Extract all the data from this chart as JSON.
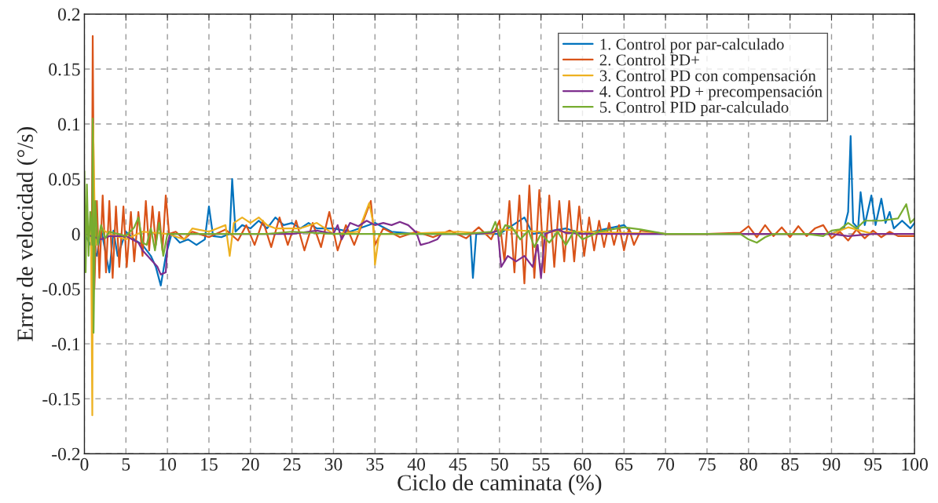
{
  "chart_data": {
    "type": "line",
    "xlabel": "Ciclo de caminata (%)",
    "ylabel": "Error de velocidad (°/s)",
    "xlim": [
      0,
      100
    ],
    "xticks": [
      0,
      5,
      10,
      15,
      20,
      25,
      30,
      35,
      40,
      45,
      50,
      55,
      60,
      65,
      70,
      75,
      80,
      85,
      90,
      95,
      100
    ],
    "ylim": [
      -0.2,
      0.2
    ],
    "yticks": [
      -0.2,
      -0.15,
      -0.1,
      -0.05,
      0,
      0.05,
      0.1,
      0.15,
      0.2
    ],
    "grid": true,
    "legend": "top right",
    "line_style": "solid",
    "marker": "none",
    "series": [
      {
        "name": "1. Control por par-calculado",
        "color": "#0072bd",
        "x": [
          0,
          1,
          1.5,
          2,
          2.5,
          3,
          3.5,
          4,
          5,
          6,
          7,
          8,
          8.6,
          9.2,
          9.8,
          10.5,
          11.5,
          12.5,
          13.5,
          14.5,
          15,
          15.5,
          16.5,
          17.5,
          17.8,
          18.2,
          19,
          20,
          21,
          22,
          23,
          24,
          25,
          26,
          27,
          28,
          30,
          32,
          35,
          37,
          40,
          44,
          46.5,
          46.8,
          47.2,
          50,
          53,
          54,
          58,
          60,
          65,
          66,
          70,
          75,
          80,
          85,
          90,
          91.5,
          92,
          92.3,
          92.6,
          93.2,
          93.5,
          94,
          94.8,
          95.3,
          96,
          96.5,
          97,
          97.5,
          98.5,
          99.5,
          100
        ],
        "values": [
          0,
          null,
          -0.02,
          0.005,
          -0.015,
          -0.035,
          0.003,
          -0.02,
          0.002,
          -0.005,
          -0.01,
          -0.02,
          -0.03,
          -0.047,
          -0.02,
          0,
          -0.008,
          -0.005,
          -0.01,
          -0.005,
          0.025,
          -0.002,
          -0.003,
          0,
          0.05,
          0.002,
          0.008,
          0.005,
          0.012,
          0.005,
          0.015,
          0.008,
          0.01,
          0.005,
          0.01,
          0.005,
          0.005,
          0.002,
          0.01,
          0.002,
          0,
          0,
          0,
          -0.04,
          0,
          0,
          0.015,
          0,
          0.005,
          0,
          0.008,
          0,
          0,
          0,
          0,
          0,
          0,
          0.005,
          0.02,
          0.089,
          0.01,
          0.005,
          0.038,
          0.008,
          0.035,
          0.008,
          0.032,
          0.01,
          0.02,
          0.005,
          0.012,
          0.005,
          0.01
        ]
      },
      {
        "name": "2. Control PD+",
        "color": "#d95319",
        "x": [
          0,
          0.5,
          0.9,
          1.0,
          1.2,
          1.5,
          1.8,
          2.2,
          2.6,
          3.0,
          3.4,
          3.8,
          4.2,
          4.7,
          5.1,
          5.6,
          6.0,
          6.5,
          7.0,
          7.4,
          7.8,
          8.2,
          8.6,
          9.0,
          9.4,
          9.8,
          10.2,
          11,
          12,
          13,
          15,
          17,
          18.5,
          19.5,
          20.5,
          21.5,
          22.5,
          23.5,
          24.5,
          25.5,
          26.5,
          27.5,
          28.5,
          29.5,
          30.5,
          31.5,
          32.5,
          33.5,
          34.5,
          35,
          36,
          38,
          40,
          42,
          44,
          46,
          47.5,
          49,
          50,
          50.6,
          51.2,
          51.8,
          52.4,
          53,
          53.6,
          54.2,
          54.8,
          55.4,
          56,
          56.6,
          57.2,
          57.8,
          58.4,
          59,
          59.6,
          60.2,
          60.8,
          61.4,
          62,
          62.6,
          63.2,
          63.8,
          64.4,
          65,
          65.6,
          66.2,
          67,
          70,
          75,
          79,
          80,
          81,
          82,
          83,
          84,
          85,
          86,
          87,
          88,
          89,
          90,
          91,
          92,
          93,
          94,
          95,
          96,
          97,
          98,
          100
        ],
        "values": [
          0,
          0.005,
          0,
          0.18,
          -0.05,
          0.03,
          -0.04,
          0.035,
          -0.035,
          0.03,
          -0.04,
          0.025,
          -0.03,
          0.025,
          -0.03,
          0.02,
          -0.025,
          0.02,
          -0.02,
          0.03,
          -0.015,
          0.025,
          -0.01,
          0.02,
          -0.015,
          0.035,
          0,
          0.002,
          -0.005,
          0.002,
          -0.003,
          0.004,
          -0.006,
          0.008,
          -0.01,
          0.012,
          -0.012,
          0.015,
          -0.01,
          0.012,
          -0.015,
          0.01,
          -0.012,
          0.02,
          -0.015,
          0.008,
          -0.01,
          0.01,
          0.03,
          -0.01,
          0.005,
          -0.003,
          0.002,
          -0.003,
          0.003,
          -0.004,
          0.006,
          -0.005,
          0.012,
          -0.025,
          0.03,
          -0.035,
          0.035,
          -0.045,
          0.044,
          -0.04,
          0.04,
          -0.035,
          0.035,
          -0.03,
          0.03,
          -0.025,
          0.03,
          -0.025,
          0.025,
          -0.02,
          0.015,
          -0.015,
          0.012,
          -0.012,
          0.01,
          -0.01,
          0.008,
          -0.015,
          0.005,
          -0.01,
          0.003,
          0,
          0,
          0.001,
          0.007,
          -0.003,
          0.008,
          -0.002,
          0.006,
          -0.003,
          0.007,
          -0.002,
          0.005,
          0.008,
          -0.004,
          0.002,
          -0.006,
          0.004,
          -0.004,
          0.003,
          -0.003,
          0.002,
          -0.002,
          -0.002
        ]
      },
      {
        "name": "3. Control PD con compensación",
        "color": "#edb120",
        "x": [
          0,
          0.8,
          0.95,
          1.05,
          1.3,
          2,
          3,
          5,
          7,
          10,
          12,
          13,
          15,
          17,
          17.5,
          18,
          19,
          20,
          21,
          22,
          23,
          26,
          28,
          29,
          30,
          33,
          34.3,
          34.8,
          35,
          35.5,
          38,
          45,
          49,
          50,
          55,
          60,
          70,
          80,
          90,
          92,
          95,
          100
        ],
        "values": [
          0,
          0.005,
          -0.165,
          0.1,
          -0.01,
          0.005,
          0,
          -0.005,
          0.002,
          0,
          -0.005,
          0.005,
          0.002,
          0.008,
          -0.02,
          0.01,
          0.015,
          0.01,
          0.015,
          0.008,
          0.005,
          0.005,
          0.01,
          0.005,
          0,
          0.002,
          0.028,
          0.01,
          -0.028,
          0,
          0,
          0.002,
          0,
          0.004,
          0.002,
          0.002,
          0,
          0,
          0,
          0.006,
          0,
          0
        ]
      },
      {
        "name": "4. Control PD + precompensación",
        "color": "#7e2f8e",
        "x": [
          0,
          2,
          3,
          5,
          6.5,
          7,
          7.6,
          8.2,
          8.8,
          9.2,
          9.8,
          10,
          10.3,
          15,
          20,
          25,
          28,
          30,
          30.5,
          31,
          32,
          33,
          34,
          35,
          36,
          37,
          38,
          39,
          40,
          40.5,
          41.5,
          42.5,
          43,
          46,
          49,
          49.8,
          50.2,
          51,
          52,
          53,
          54,
          54.6,
          55,
          55.5,
          57,
          58,
          60,
          70,
          80,
          90,
          92,
          95,
          100
        ],
        "values": [
          0,
          -0.005,
          -0.002,
          -0.002,
          -0.008,
          -0.015,
          -0.02,
          -0.025,
          -0.03,
          -0.037,
          -0.035,
          -0.01,
          0,
          0,
          0,
          0,
          0.003,
          0,
          0.008,
          -0.005,
          0.01,
          0.007,
          0.012,
          0.008,
          0.01,
          0.008,
          0.011,
          0.008,
          0.001,
          -0.01,
          -0.008,
          -0.005,
          0,
          0,
          0.001,
          0.003,
          -0.03,
          -0.02,
          -0.025,
          -0.02,
          -0.03,
          -0.01,
          -0.04,
          0,
          0.004,
          0.001,
          0,
          0,
          0,
          0,
          -0.002,
          0,
          0
        ]
      },
      {
        "name": "5. Control PID par-calculado",
        "color": "#77ac30",
        "x": [
          0,
          0.15,
          0.3,
          0.5,
          0.7,
          0.95,
          1.0,
          1.1,
          1.3,
          1.6,
          2,
          2.5,
          3,
          4,
          5,
          6,
          6.5,
          7,
          7.5,
          8,
          8.5,
          9,
          9.5,
          10,
          12,
          15,
          18,
          22,
          25,
          30,
          35,
          40,
          44,
          46,
          49,
          49.5,
          50,
          50.7,
          51.5,
          52.5,
          53.5,
          54.2,
          55,
          56,
          57,
          58,
          59,
          60,
          62,
          65,
          67,
          70,
          75,
          79,
          80,
          81,
          82,
          83,
          87,
          89,
          90,
          91,
          92,
          93,
          94,
          96,
          98,
          99,
          99.5,
          100
        ],
        "values": [
          0.057,
          -0.035,
          0.045,
          -0.02,
          0.02,
          -0.01,
          0.105,
          -0.09,
          0.03,
          -0.01,
          0.008,
          -0.004,
          0.002,
          0,
          -0.002,
          0.006,
          0.015,
          -0.008,
          -0.01,
          0.005,
          -0.015,
          0.01,
          -0.02,
          0,
          0,
          0,
          0,
          0,
          0.002,
          0,
          0,
          0,
          0,
          0,
          0.002,
          0.011,
          -0.002,
          0.008,
          0.006,
          -0.005,
          0.003,
          -0.012,
          0,
          -0.008,
          0.002,
          -0.01,
          0.003,
          -0.005,
          0.002,
          0.006,
          0.004,
          0,
          0,
          0,
          -0.005,
          -0.008,
          -0.003,
          0,
          0,
          -0.002,
          0.003,
          0.004,
          0.01,
          0.005,
          0.012,
          0.012,
          0.014,
          0.027,
          0.01,
          0.014
        ]
      }
    ]
  }
}
